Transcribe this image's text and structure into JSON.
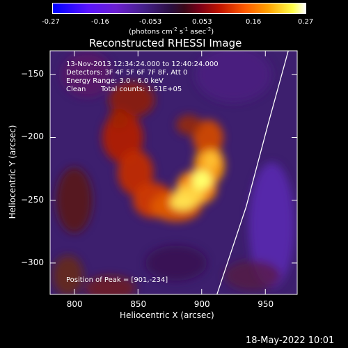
{
  "colorbar": {
    "ticks": [
      "-0.27",
      "-0.16",
      "-0.053",
      "0.053",
      "0.16",
      "0.27"
    ],
    "units_text": "(photons cm",
    "units_sup1": "-2",
    "units_mid1": " s",
    "units_sup2": "-1",
    "units_mid2": " asec",
    "units_sup3": "-2",
    "units_end": ")",
    "min": -0.27,
    "max": 0.27
  },
  "title": "Reconstructed RHESSI Image",
  "info": {
    "time": "13-Nov-2013 12:34:24.000 to 12:40:24.000",
    "detectors": "Detectors: 3F 4F 5F 6F 7F 8F, Att 0",
    "energy": "Energy Range: 3.0 - 6.0 keV",
    "clean": "Clean",
    "counts": "Total counts: 1.51E+05"
  },
  "peak": "Position of Peak = [901,-234]",
  "timestamp": "18-May-2022 10:01",
  "chart_data": {
    "type": "heatmap",
    "title": "Reconstructed RHESSI Image",
    "xlabel": "Heliocentric X (arcsec)",
    "ylabel": "Heliocentric Y (arcsec)",
    "xlim": [
      781,
      975
    ],
    "ylim": [
      -325,
      -131
    ],
    "x_ticks": [
      800,
      850,
      900,
      950
    ],
    "y_ticks": [
      -150,
      -200,
      -250,
      -300
    ],
    "x_tick_labels": [
      "800",
      "850",
      "900",
      "950"
    ],
    "y_tick_labels": [
      "−150",
      "−200",
      "−250",
      "−300"
    ],
    "value_range": [
      -0.27,
      0.27
    ],
    "colormap": [
      "#0000ff",
      "#6b1fd1",
      "#45208a",
      "#3a1048",
      "#7a0018",
      "#e62a00",
      "#ff9a00",
      "#ffff4a",
      "#ffffff"
    ],
    "peak_position": [
      901,
      -234
    ],
    "limb": [
      [
        912,
        -325
      ],
      [
        935,
        -255
      ],
      [
        952,
        -190
      ],
      [
        968,
        -131
      ]
    ]
  }
}
